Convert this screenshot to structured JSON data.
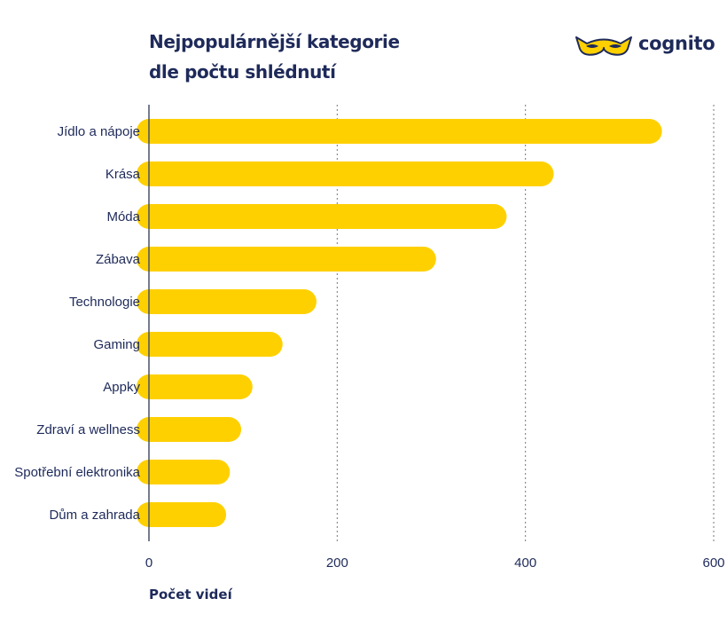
{
  "title": {
    "line1": "Nejpopulárnější kategorie",
    "line2": "dle počtu shlédnutí"
  },
  "logo": {
    "text": "cognito",
    "icon": "mask-icon"
  },
  "colors": {
    "bar": "#FFD000",
    "text": "#1E2A5A",
    "axis": "#4A5068",
    "grid": "#777777"
  },
  "chart_data": {
    "type": "bar",
    "orientation": "horizontal",
    "categories": [
      "Jídlo a nápoje",
      "Krása",
      "Móda",
      "Zábava",
      "Technologie",
      "Gaming",
      "Appky",
      "Zdraví a wellness",
      "Spotřební elektronika",
      "Dům a zahrada"
    ],
    "values": [
      545,
      430,
      380,
      305,
      178,
      142,
      110,
      98,
      86,
      82
    ],
    "xlabel": "Počet videí",
    "xlim": [
      0,
      600
    ],
    "xticks": [
      0,
      200,
      400,
      600
    ],
    "grid": true
  }
}
